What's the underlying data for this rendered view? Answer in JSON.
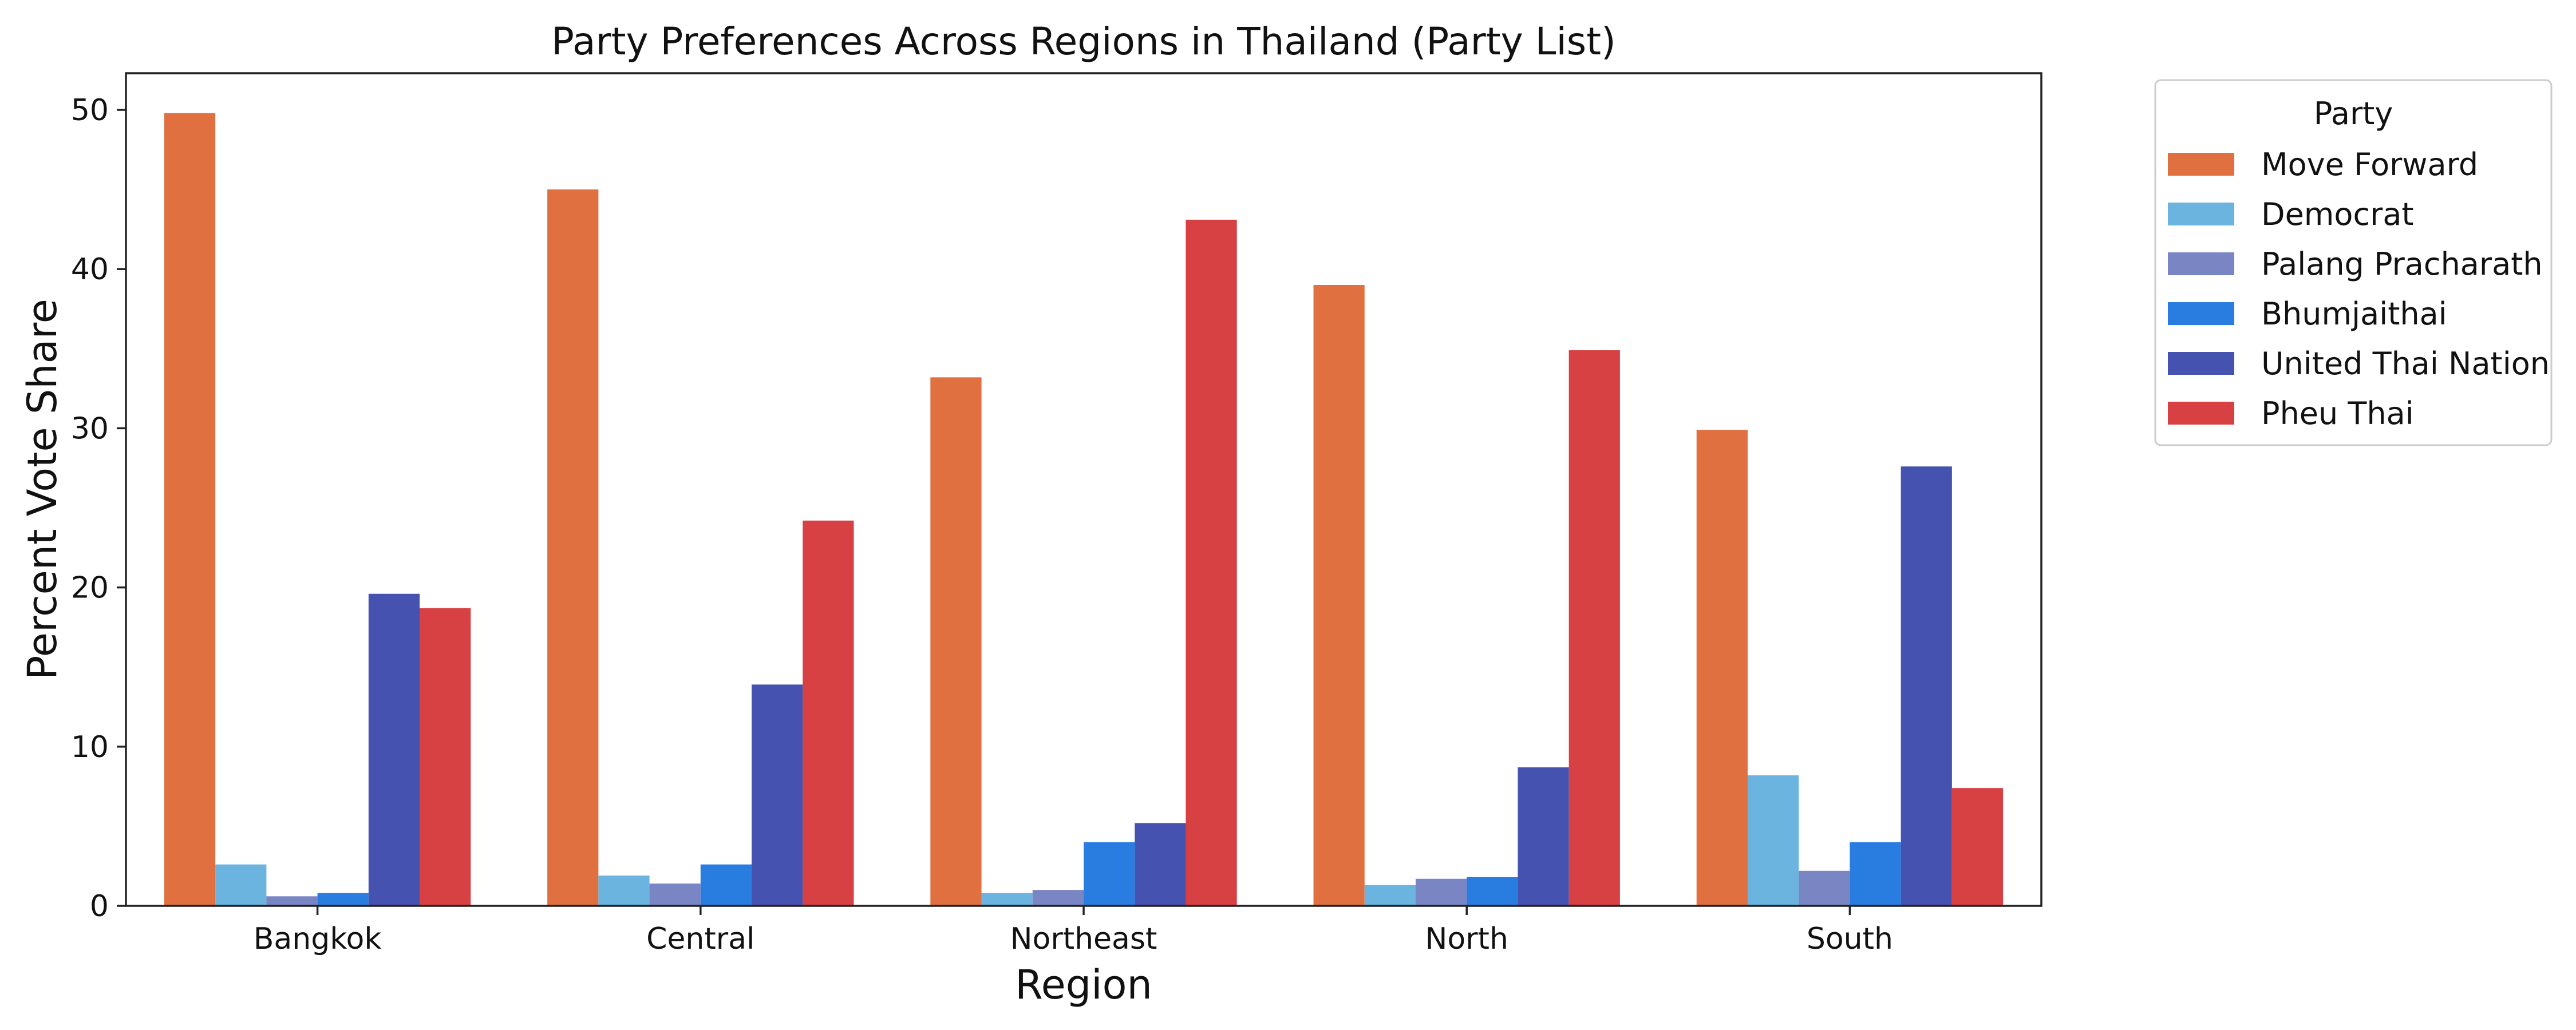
{
  "chart_data": {
    "type": "bar",
    "title": "Party Preferences Across Regions in Thailand (Party List)",
    "xlabel": "Region",
    "ylabel": "Percent Vote Share",
    "categories": [
      "Bangkok",
      "Central",
      "Northeast",
      "North",
      "South"
    ],
    "ylim": [
      0,
      52.3
    ],
    "yticks": [
      0,
      10,
      20,
      30,
      40,
      50
    ],
    "grid": false,
    "legend": {
      "title": "Party",
      "placement": "outside-top-right"
    },
    "series": [
      {
        "name": "Move Forward",
        "color": "#e07040",
        "values": [
          49.8,
          45.0,
          33.2,
          39.0,
          29.9
        ]
      },
      {
        "name": "Democrat",
        "color": "#6ab4df",
        "values": [
          2.6,
          1.9,
          0.8,
          1.3,
          8.2
        ]
      },
      {
        "name": "Palang Pracharath",
        "color": "#7a86c4",
        "values": [
          0.6,
          1.4,
          1.0,
          1.7,
          2.2
        ]
      },
      {
        "name": "Bhumjaithai",
        "color": "#2a7de0",
        "values": [
          0.8,
          2.6,
          4.0,
          1.8,
          4.0
        ]
      },
      {
        "name": "United Thai Nation",
        "color": "#4652b0",
        "values": [
          19.6,
          13.9,
          5.2,
          8.7,
          27.6
        ]
      },
      {
        "name": "Pheu Thai",
        "color": "#d74144",
        "values": [
          18.7,
          24.2,
          43.1,
          34.9,
          7.4
        ]
      }
    ]
  }
}
